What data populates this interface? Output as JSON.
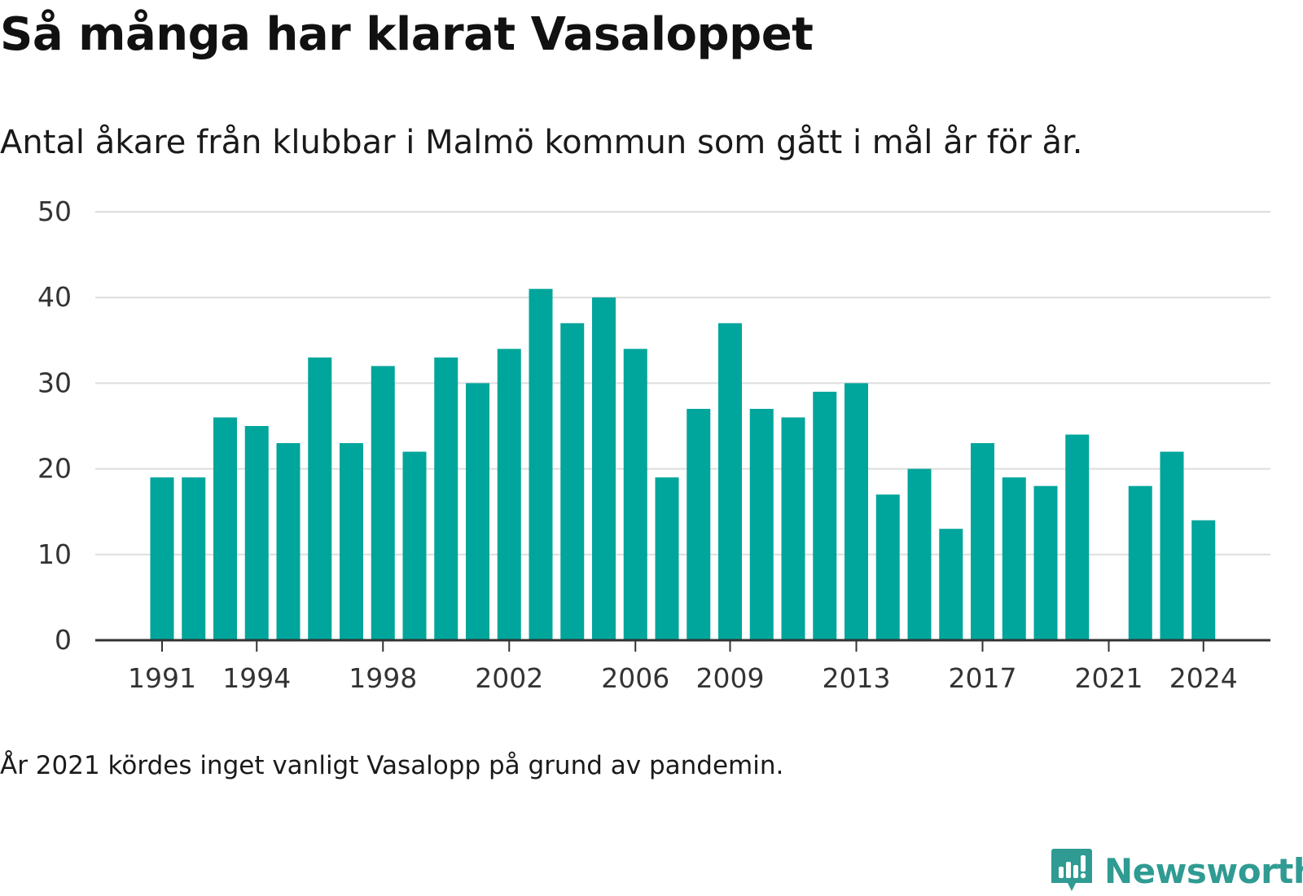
{
  "title": "Så många har klarat Vasaloppet",
  "subtitle": "Antal åkare från klubbar i Malmö kommun som gått i mål år för år.",
  "note": "År 2021 kördes inget vanligt Vasalopp på grund av pandemin.",
  "brand": {
    "name": "Newsworthy",
    "icon": "newsworthy-logo-icon",
    "color": "#2f9b92"
  },
  "chart_data": {
    "type": "bar",
    "title": "",
    "xlabel": "",
    "ylabel": "",
    "bar_color": "#00a59b",
    "ylim": [
      0,
      50
    ],
    "yticks": [
      0,
      10,
      20,
      30,
      40,
      50
    ],
    "xticks": [
      "1991",
      "1994",
      "1998",
      "2002",
      "2006",
      "2009",
      "2013",
      "2017",
      "2021",
      "2024"
    ],
    "grid": true,
    "categories": [
      "1991",
      "1992",
      "1993",
      "1994",
      "1995",
      "1996",
      "1997",
      "1998",
      "1999",
      "2000",
      "2001",
      "2002",
      "2003",
      "2004",
      "2005",
      "2006",
      "2007",
      "2008",
      "2009",
      "2010",
      "2011",
      "2012",
      "2013",
      "2014",
      "2015",
      "2016",
      "2017",
      "2018",
      "2019",
      "2020",
      "2021",
      "2022",
      "2023",
      "2024"
    ],
    "values": [
      19,
      19,
      26,
      25,
      23,
      33,
      23,
      32,
      22,
      33,
      30,
      34,
      41,
      37,
      40,
      34,
      19,
      27,
      37,
      27,
      26,
      29,
      30,
      17,
      20,
      13,
      23,
      19,
      18,
      24,
      null,
      18,
      22,
      14
    ]
  }
}
